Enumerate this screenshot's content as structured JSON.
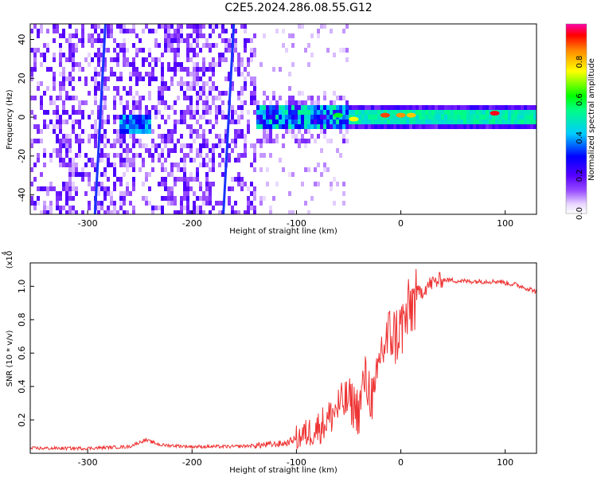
{
  "title": "C2E5.2024.286.08.55.G12",
  "chart_data": [
    {
      "type": "heatmap",
      "title": "C2E5.2024.286.08.55.G12",
      "xlabel": "Height of straight line (km)",
      "ylabel": "Frequency (Hz)",
      "xlim": [
        -355,
        130
      ],
      "ylim": [
        -50,
        48
      ],
      "xticks": [
        -300,
        -200,
        -100,
        0,
        100
      ],
      "yticks": [
        -40,
        -20,
        0,
        20,
        40
      ],
      "colorbar": {
        "label": "Normalized spectral amplitude",
        "range": [
          0.0,
          1.0
        ],
        "ticks": [
          "0.0",
          "0.2",
          "0.4",
          "0.6",
          "0.8"
        ]
      },
      "features": {
        "main_line_frequency_hz": 0,
        "vertical_streaks_km": [
          -288,
          -165
        ],
        "peak_blobs": [
          {
            "x": -15,
            "y": 1,
            "amp": 0.9
          },
          {
            "x": 0,
            "y": 1,
            "amp": 0.85
          },
          {
            "x": 10,
            "y": 1,
            "amp": 0.8
          },
          {
            "x": 90,
            "y": 2,
            "amp": 0.95
          },
          {
            "x": -45,
            "y": -1,
            "amp": 0.75
          },
          {
            "x": -60,
            "y": 1,
            "amp": 0.6
          }
        ]
      }
    },
    {
      "type": "line",
      "xlabel": "Height of straight line (km)",
      "ylabel": "SNR (10 * v/v)",
      "y_multiplier": "(x10",
      "y_multiplier_exp": "4",
      "xlim": [
        -355,
        130
      ],
      "ylim": [
        0,
        1.14
      ],
      "xticks": [
        -300,
        -200,
        -100,
        0,
        100
      ],
      "yticks": [
        0.2,
        0.4,
        0.6,
        0.8,
        1.0
      ],
      "series": [
        {
          "color": "#ee3333",
          "x": [
            -355,
            -300,
            -260,
            -245,
            -230,
            -200,
            -160,
            -130,
            -110,
            -100,
            -90,
            -80,
            -70,
            -60,
            -50,
            -40,
            -35,
            -30,
            -25,
            -20,
            -15,
            -10,
            -5,
            0,
            5,
            10,
            15,
            20,
            25,
            30,
            35,
            40,
            60,
            80,
            95,
            100,
            110,
            120,
            130
          ],
          "y": [
            0.03,
            0.03,
            0.04,
            0.08,
            0.05,
            0.04,
            0.04,
            0.05,
            0.06,
            0.09,
            0.12,
            0.15,
            0.2,
            0.28,
            0.32,
            0.25,
            0.45,
            0.38,
            0.3,
            0.6,
            0.65,
            0.72,
            0.7,
            0.75,
            0.8,
            0.88,
            0.95,
            0.97,
            1.0,
            1.02,
            1.03,
            1.04,
            1.03,
            1.03,
            1.03,
            1.02,
            1.01,
            0.99,
            0.97
          ]
        }
      ]
    }
  ]
}
